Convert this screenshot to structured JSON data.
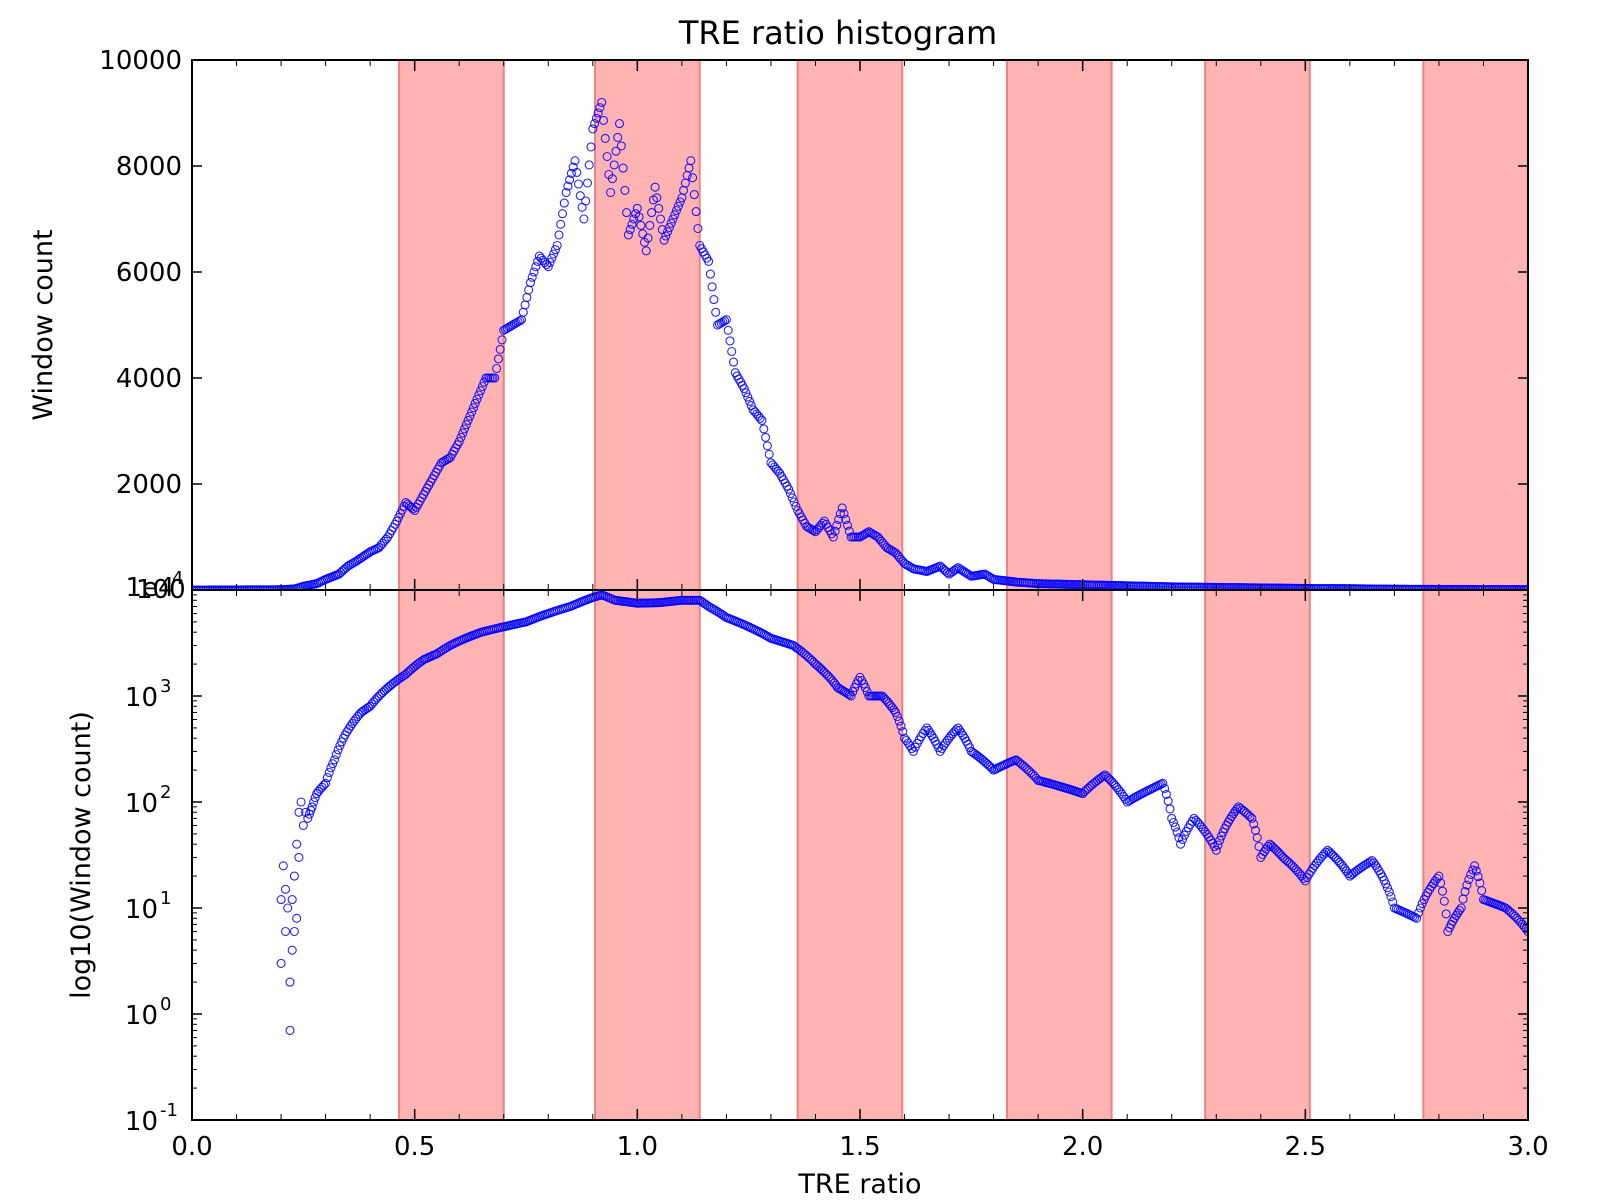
{
  "chart_data": {
    "title": "TRE ratio histogram",
    "xlabel": "TRE ratio",
    "shared_x": true,
    "xlim": [
      0,
      3
    ],
    "x_ticks": [
      0.0,
      0.5,
      1.0,
      1.5,
      2.0,
      2.5,
      3.0
    ],
    "x_tick_labels": [
      "0.0",
      "0.5",
      "1.0",
      "1.5",
      "2.0",
      "2.5",
      "3.0"
    ],
    "shaded_bands": [
      {
        "x0": 0.465,
        "x1": 0.7
      },
      {
        "x0": 0.905,
        "x1": 1.14
      },
      {
        "x0": 1.36,
        "x1": 1.595
      },
      {
        "x0": 1.83,
        "x1": 2.065
      },
      {
        "x0": 2.275,
        "x1": 2.51
      },
      {
        "x0": 2.765,
        "x1": 3.0
      }
    ],
    "band_color": "#ffb3b3",
    "band_edge_color": "#f08080",
    "marker_color": "#0000ff",
    "panels": [
      {
        "type": "scatter",
        "ylabel": "Window count",
        "yscale": "linear",
        "ylim": [
          0,
          10000
        ],
        "y_ticks": [
          2000,
          4000,
          6000,
          8000,
          10000
        ],
        "y_tick_labels": [
          "2000",
          "4000",
          "6000",
          "8000",
          "10000"
        ],
        "offset_text": "1e4",
        "series": [
          {
            "x": [
              0.0,
              0.2,
              0.23,
              0.25,
              0.28,
              0.3,
              0.33,
              0.35,
              0.37,
              0.4,
              0.42,
              0.44,
              0.46,
              0.48,
              0.5,
              0.52,
              0.54,
              0.56,
              0.58,
              0.6,
              0.62,
              0.64,
              0.66,
              0.68,
              0.7,
              0.72,
              0.74,
              0.76,
              0.78,
              0.8,
              0.82,
              0.84,
              0.86,
              0.88,
              0.9,
              0.92,
              0.94,
              0.96,
              0.98,
              1.0,
              1.02,
              1.04,
              1.06,
              1.08,
              1.1,
              1.12,
              1.14,
              1.16,
              1.18,
              1.2,
              1.22,
              1.24,
              1.26,
              1.28,
              1.3,
              1.32,
              1.34,
              1.36,
              1.38,
              1.4,
              1.42,
              1.44,
              1.46,
              1.48,
              1.5,
              1.52,
              1.54,
              1.56,
              1.58,
              1.6,
              1.62,
              1.65,
              1.68,
              1.7,
              1.72,
              1.75,
              1.78,
              1.8,
              1.85,
              1.9,
              1.95,
              2.0,
              2.05,
              2.1,
              2.2,
              2.3,
              2.4,
              2.5,
              2.6,
              2.7,
              2.8,
              2.9,
              3.0
            ],
            "y": [
              0,
              5,
              20,
              70,
              120,
              200,
              300,
              450,
              550,
              720,
              800,
              1000,
              1300,
              1650,
              1500,
              1800,
              2100,
              2400,
              2500,
              2800,
              3200,
              3600,
              4000,
              4000,
              4900,
              5000,
              5100,
              5800,
              6300,
              6100,
              6500,
              7500,
              8100,
              7000,
              8700,
              9200,
              7500,
              8800,
              6700,
              7200,
              6400,
              7600,
              6600,
              7000,
              7400,
              8100,
              6500,
              6200,
              5000,
              5100,
              4100,
              3800,
              3400,
              3200,
              2400,
              2200,
              1900,
              1500,
              1200,
              1100,
              1300,
              1000,
              1550,
              1000,
              1000,
              1100,
              1000,
              800,
              700,
              500,
              400,
              350,
              450,
              300,
              420,
              260,
              300,
              200,
              150,
              120,
              110,
              100,
              90,
              80,
              60,
              50,
              40,
              30,
              25,
              15,
              12,
              10,
              8
            ]
          }
        ]
      },
      {
        "type": "scatter",
        "ylabel": "log10(Window count)",
        "yscale": "log",
        "ylim": [
          0.1,
          10000
        ],
        "y_ticks": [
          0.1,
          1,
          10,
          100,
          1000,
          10000
        ],
        "y_tick_labels": [
          {
            "base": "10",
            "exp": "-1"
          },
          {
            "base": "10",
            "exp": "0"
          },
          {
            "base": "10",
            "exp": "1"
          },
          {
            "base": "10",
            "exp": "2"
          },
          {
            "base": "10",
            "exp": "3"
          },
          {
            "base": "10",
            "exp": "4"
          }
        ],
        "series": [
          {
            "x": [
              0.2,
              0.2,
              0.205,
              0.21,
              0.21,
              0.215,
              0.22,
              0.22,
              0.225,
              0.225,
              0.23,
              0.23,
              0.235,
              0.235,
              0.24,
              0.24,
              0.245,
              0.25,
              0.255,
              0.26,
              0.27,
              0.28,
              0.3,
              0.32,
              0.34,
              0.36,
              0.38,
              0.4,
              0.42,
              0.44,
              0.46,
              0.48,
              0.5,
              0.52,
              0.55,
              0.58,
              0.6,
              0.65,
              0.7,
              0.75,
              0.8,
              0.85,
              0.9,
              0.92,
              0.95,
              1.0,
              1.05,
              1.1,
              1.14,
              1.16,
              1.2,
              1.25,
              1.3,
              1.35,
              1.4,
              1.45,
              1.48,
              1.5,
              1.52,
              1.55,
              1.58,
              1.6,
              1.62,
              1.65,
              1.68,
              1.72,
              1.75,
              1.8,
              1.85,
              1.9,
              1.95,
              2.0,
              2.05,
              2.1,
              2.15,
              2.18,
              2.2,
              2.22,
              2.25,
              2.3,
              2.35,
              2.38,
              2.4,
              2.42,
              2.45,
              2.5,
              2.55,
              2.6,
              2.65,
              2.7,
              2.75,
              2.8,
              2.82,
              2.85,
              2.88,
              2.9,
              2.95,
              3.0
            ],
            "y": [
              3,
              12,
              25,
              6,
              15,
              10,
              0.7,
              2,
              4,
              12,
              6,
              20,
              8,
              40,
              30,
              80,
              100,
              60,
              80,
              70,
              90,
              120,
              150,
              250,
              400,
              550,
              700,
              800,
              1000,
              1200,
              1400,
              1600,
              1900,
              2200,
              2500,
              3000,
              3300,
              4000,
              4500,
              5000,
              6000,
              7000,
              8500,
              9000,
              8000,
              7500,
              7600,
              8000,
              8000,
              7000,
              5500,
              4500,
              3500,
              3000,
              2000,
              1200,
              1000,
              1500,
              1000,
              1000,
              700,
              400,
              300,
              500,
              300,
              500,
              300,
              200,
              250,
              160,
              140,
              120,
              180,
              100,
              130,
              150,
              70,
              40,
              70,
              35,
              90,
              70,
              30,
              40,
              30,
              18,
              35,
              20,
              28,
              10,
              8,
              20,
              6,
              10,
              25,
              12,
              10,
              6
            ]
          }
        ]
      }
    ]
  }
}
